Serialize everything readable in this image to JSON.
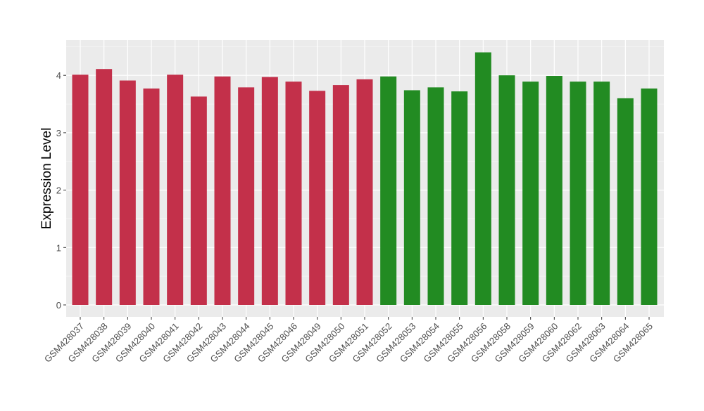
{
  "chart_data": {
    "type": "bar",
    "title": "",
    "xlabel": "",
    "ylabel": "Expression Level",
    "ylim": [
      0,
      4.6
    ],
    "yticks": [
      0,
      1,
      2,
      3,
      4
    ],
    "grid": true,
    "categories": [
      "GSM428037",
      "GSM428038",
      "GSM428039",
      "GSM428040",
      "GSM428041",
      "GSM428042",
      "GSM428043",
      "GSM428044",
      "GSM428045",
      "GSM428046",
      "GSM428049",
      "GSM428050",
      "GSM428051",
      "GSM428052",
      "GSM428053",
      "GSM428054",
      "GSM428055",
      "GSM428056",
      "GSM428058",
      "GSM428059",
      "GSM428060",
      "GSM428062",
      "GSM428063",
      "GSM428064",
      "GSM428065"
    ],
    "values": [
      4.01,
      4.11,
      3.91,
      3.77,
      4.01,
      3.63,
      3.98,
      3.79,
      3.97,
      3.89,
      3.73,
      3.83,
      3.93,
      3.98,
      3.74,
      3.79,
      3.72,
      4.4,
      4.0,
      3.89,
      3.99,
      3.89,
      3.89,
      3.6,
      3.77
    ],
    "groups": [
      "a",
      "a",
      "a",
      "a",
      "a",
      "a",
      "a",
      "a",
      "a",
      "a",
      "a",
      "a",
      "a",
      "b",
      "b",
      "b",
      "b",
      "b",
      "b",
      "b",
      "b",
      "b",
      "b",
      "b",
      "b"
    ],
    "colors": {
      "a": "#c3304a",
      "b": "#228b22"
    }
  }
}
